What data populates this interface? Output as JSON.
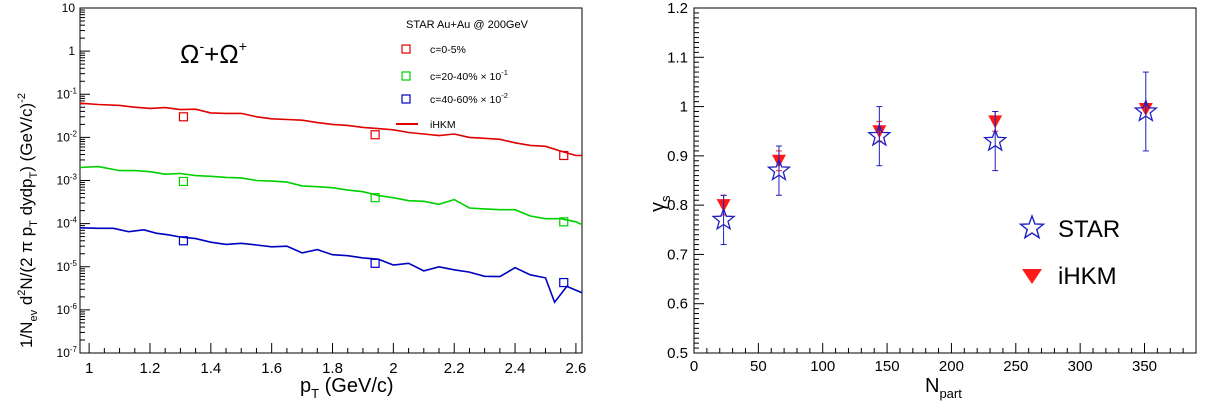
{
  "chart_data": [
    {
      "type": "scatter",
      "title": "Ω⁻+Ω⁺",
      "title_parts": {
        "base1": "Ω",
        "sup1": "-",
        "plus": "+",
        "base2": "Ω",
        "sup2": "+"
      },
      "xlabel": {
        "main": "p",
        "sub": "T",
        "rest": " (GeV/c)"
      },
      "ylabel": {
        "p1": "1/N",
        "s1": "ev",
        "p2": " d",
        "s2": "2",
        "p3": "N/(2 π p",
        "s3": "T",
        "p4": " dydp",
        "s4": "T",
        "p5": ") (GeV/c)",
        "s5": "-2"
      },
      "xlim": [
        0.97,
        2.62
      ],
      "ylim": [
        1e-07,
        10
      ],
      "yscale": "log",
      "grid": false,
      "legend_position": "top-right",
      "legend_title": "STAR Au+Au @ 200GeV",
      "xticks": [
        1,
        1.2,
        1.4,
        1.6,
        1.8,
        2,
        2.2,
        2.4,
        2.6
      ],
      "xtick_labels": [
        "1",
        "1.2",
        "1.4",
        "1.6",
        "1.8",
        "2",
        "2.2",
        "2.4",
        "2.6"
      ],
      "yticks": [
        {
          "v": 10,
          "base": "10",
          "exp": ""
        },
        {
          "v": 1,
          "base": "1",
          "exp": ""
        },
        {
          "v": 0.1,
          "base": "10",
          "exp": "-1"
        },
        {
          "v": 0.01,
          "base": "10",
          "exp": "-2"
        },
        {
          "v": 0.001,
          "base": "10",
          "exp": "-3"
        },
        {
          "v": 0.0001,
          "base": "10",
          "exp": "-4"
        },
        {
          "v": 1e-05,
          "base": "10",
          "exp": "-5"
        },
        {
          "v": 1e-06,
          "base": "10",
          "exp": "-6"
        },
        {
          "v": 1e-07,
          "base": "10",
          "exp": "-7"
        }
      ],
      "series": [
        {
          "name": "c=0-5%",
          "kind": "marker-square",
          "color": "#e00000",
          "x": [
            1.31,
            1.94,
            2.56
          ],
          "y": [
            0.03,
            0.0115,
            0.0038
          ]
        },
        {
          "name": "c=20-40% × 10",
          "name_exp": "-1",
          "kind": "marker-square",
          "color": "#00d000",
          "x": [
            1.31,
            1.94,
            2.56
          ],
          "y": [
            0.00095,
            0.0004,
            0.00011
          ]
        },
        {
          "name": "c=40-60% × 10",
          "name_exp": "-2",
          "kind": "marker-square",
          "color": "#0000c0",
          "x": [
            1.31,
            1.94,
            2.56
          ],
          "y": [
            4e-05,
            1.2e-05,
            4.3e-06
          ]
        },
        {
          "name": "iHKM",
          "kind": "line",
          "color": "#e00000",
          "x": [
            0.97,
            1.03,
            1.1,
            1.15,
            1.2,
            1.25,
            1.3,
            1.35,
            1.4,
            1.45,
            1.5,
            1.55,
            1.6,
            1.65,
            1.7,
            1.75,
            1.8,
            1.85,
            1.9,
            1.95,
            2.0,
            2.05,
            2.1,
            2.15,
            2.2,
            2.25,
            2.3,
            2.35,
            2.4,
            2.45,
            2.5,
            2.55,
            2.6,
            2.62
          ],
          "y": [
            0.062,
            0.058,
            0.055,
            0.05,
            0.047,
            0.049,
            0.044,
            0.045,
            0.037,
            0.036,
            0.036,
            0.03,
            0.027,
            0.026,
            0.025,
            0.022,
            0.02,
            0.019,
            0.017,
            0.016,
            0.015,
            0.013,
            0.012,
            0.011,
            0.012,
            0.01,
            0.0095,
            0.009,
            0.0075,
            0.0065,
            0.0062,
            0.0048,
            0.0038,
            0.0038
          ]
        },
        {
          "name": "",
          "kind": "line",
          "color": "#00d000",
          "x": [
            0.97,
            1.03,
            1.1,
            1.15,
            1.2,
            1.25,
            1.3,
            1.35,
            1.4,
            1.45,
            1.5,
            1.55,
            1.6,
            1.65,
            1.7,
            1.75,
            1.8,
            1.85,
            1.9,
            1.95,
            2.0,
            2.05,
            2.1,
            2.15,
            2.2,
            2.25,
            2.3,
            2.35,
            2.4,
            2.45,
            2.5,
            2.55,
            2.6,
            2.62
          ],
          "y": [
            0.002,
            0.0021,
            0.0017,
            0.0017,
            0.0016,
            0.0014,
            0.00145,
            0.0013,
            0.00125,
            0.00118,
            0.00115,
            0.001,
            0.00097,
            0.00092,
            0.00075,
            0.00072,
            0.00068,
            0.0006,
            0.00055,
            0.00045,
            0.0004,
            0.00034,
            0.00033,
            0.00028,
            0.00036,
            0.00023,
            0.00022,
            0.00021,
            0.00021,
            0.00015,
            0.00013,
            0.00013,
            0.00011,
            9.5e-05
          ]
        },
        {
          "name": "",
          "kind": "line",
          "color": "#0000c0",
          "x": [
            0.97,
            1.03,
            1.08,
            1.13,
            1.18,
            1.22,
            1.26,
            1.3,
            1.35,
            1.4,
            1.45,
            1.5,
            1.55,
            1.6,
            1.65,
            1.7,
            1.75,
            1.8,
            1.85,
            1.9,
            1.95,
            2.0,
            2.05,
            2.1,
            2.15,
            2.2,
            2.25,
            2.3,
            2.35,
            2.4,
            2.45,
            2.5,
            2.53,
            2.57,
            2.62
          ],
          "y": [
            8e-05,
            7.8e-05,
            7.8e-05,
            6.5e-05,
            7.2e-05,
            6e-05,
            5.5e-05,
            4.9e-05,
            4.5e-05,
            3.7e-05,
            3.3e-05,
            3.5e-05,
            3.2e-05,
            2.9e-05,
            3e-05,
            2.1e-05,
            2.5e-05,
            1.9e-05,
            1.8e-05,
            1.6e-05,
            1.5e-05,
            1.1e-05,
            1.2e-05,
            8e-06,
            1e-05,
            8.5e-06,
            7.5e-06,
            6e-06,
            5.9e-06,
            9.5e-06,
            6.5e-06,
            5.5e-06,
            1.5e-06,
            3.5e-06,
            2.5e-06
          ]
        }
      ]
    },
    {
      "type": "scatter",
      "title": "",
      "xlabel": {
        "main": "N",
        "sub": "part"
      },
      "ylabel": {
        "main": "γ",
        "sub": "s"
      },
      "xlim": [
        0,
        390
      ],
      "ylim": [
        0.5,
        1.2
      ],
      "grid": false,
      "legend_position": "bottom-right",
      "xticks": [
        0,
        50,
        100,
        150,
        200,
        250,
        300,
        350
      ],
      "xtick_labels": [
        "0",
        "50",
        "100",
        "150",
        "200",
        "250",
        "300",
        "350"
      ],
      "yticks": [
        0.5,
        0.6,
        0.7,
        0.8,
        0.9,
        1,
        1.1,
        1.2
      ],
      "ytick_labels": [
        "0.5",
        "0.6",
        "0.7",
        "0.8",
        "0.9",
        "1",
        "1.1",
        "1.2"
      ],
      "series": [
        {
          "name": "STAR",
          "kind": "star",
          "color": "#1f1fbf",
          "x": [
            23,
            66,
            144,
            234,
            351
          ],
          "y": [
            0.77,
            0.87,
            0.94,
            0.93,
            0.99
          ],
          "err": [
            0.05,
            0.05,
            0.06,
            0.06,
            0.08
          ]
        },
        {
          "name": "iHKM",
          "kind": "triangle-down",
          "color": "#ff1a1a",
          "x": [
            23,
            66,
            144,
            234,
            351
          ],
          "y": [
            0.8,
            0.89,
            0.95,
            0.97,
            0.995
          ],
          "err": [
            0.02,
            0.02,
            0.02,
            0.02,
            0.0
          ]
        }
      ]
    }
  ]
}
